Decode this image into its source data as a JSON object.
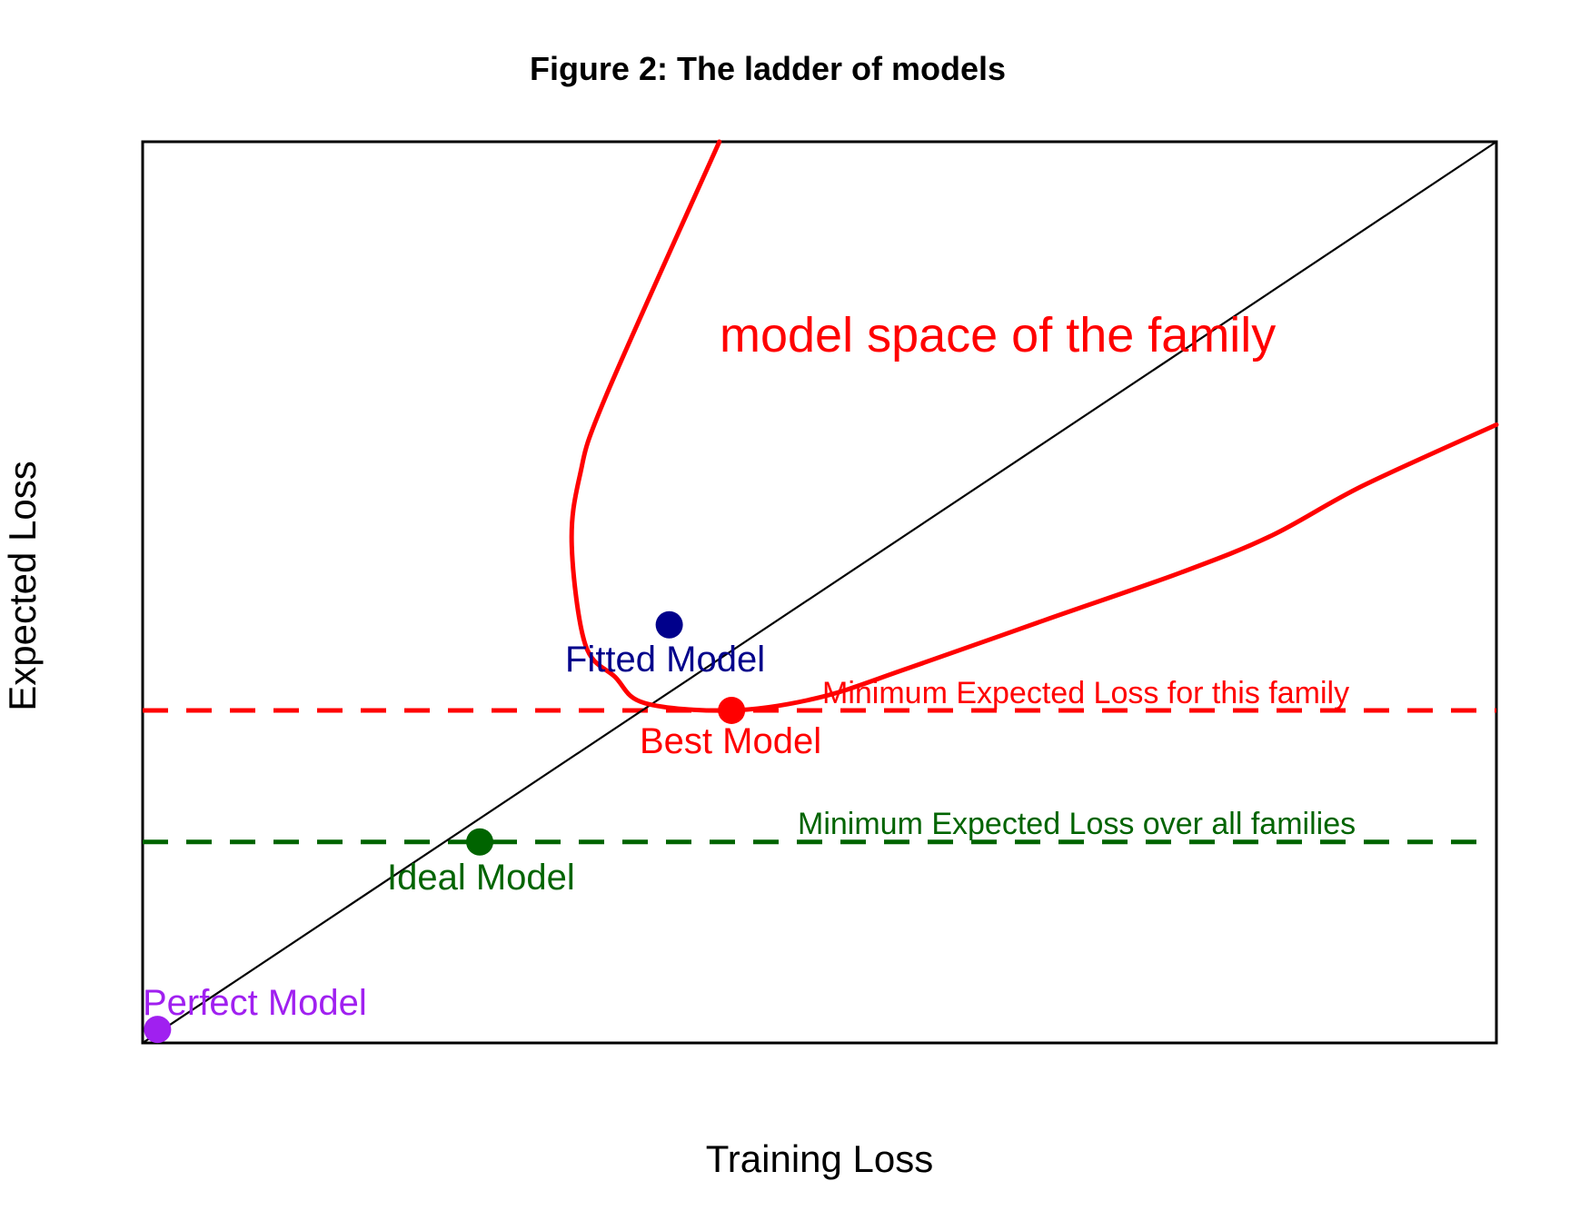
{
  "chart_data": {
    "type": "scatter",
    "title": "Figure 2: The ladder of models",
    "xlabel": "Training Loss",
    "ylabel": "Expected Loss",
    "xlim": [
      0,
      1
    ],
    "ylim": [
      0,
      1
    ],
    "coords": "relative (axes have no tick labels)",
    "grid": false,
    "frame": true,
    "legend": "none",
    "background": "#FFFFFF",
    "frame_color": "#000000",
    "diagonal": {
      "from": [
        0,
        0
      ],
      "to": [
        1,
        1
      ],
      "color": "#000000",
      "style": "solid"
    },
    "points": [
      {
        "label": "Perfect Model",
        "x": 0.011,
        "y": 0.015,
        "color": "#A020F0"
      },
      {
        "label": "Ideal Model",
        "x": 0.249,
        "y": 0.223,
        "color": "#006400"
      },
      {
        "label": "Best Model",
        "x": 0.435,
        "y": 0.369,
        "color": "#FF0000"
      },
      {
        "label": "Fitted Model",
        "x": 0.389,
        "y": 0.464,
        "color": "#00008B"
      }
    ],
    "hlines": [
      {
        "label": "Minimum Expected Loss for this family",
        "y": 0.369,
        "color": "#FF0000",
        "style": "dashed"
      },
      {
        "label": "Minimum Expected Loss over all families",
        "y": 0.223,
        "color": "#006400",
        "style": "dashed"
      }
    ],
    "curve": {
      "label": "model space of the family",
      "color": "#FF0000",
      "style": "solid",
      "points": [
        [
          0.426,
          1.0
        ],
        [
          0.342,
          0.717
        ],
        [
          0.323,
          0.63
        ],
        [
          0.317,
          0.552
        ],
        [
          0.327,
          0.442
        ],
        [
          0.349,
          0.406
        ],
        [
          0.371,
          0.377
        ],
        [
          0.435,
          0.369
        ],
        [
          0.499,
          0.383
        ],
        [
          0.566,
          0.416
        ],
        [
          0.666,
          0.469
        ],
        [
          0.767,
          0.522
        ],
        [
          0.834,
          0.563
        ],
        [
          0.901,
          0.618
        ],
        [
          1.0,
          0.686
        ]
      ]
    }
  }
}
